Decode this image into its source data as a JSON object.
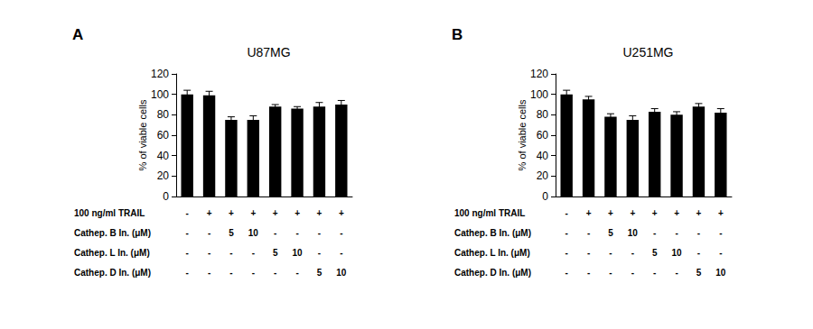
{
  "chart_data": [
    {
      "type": "bar",
      "annotation": "A",
      "title": "U87MG",
      "ylabel": "% of viable cells",
      "categories": [
        null,
        null,
        null,
        null,
        null,
        null,
        null,
        null
      ],
      "values": [
        100,
        99,
        75,
        75,
        88,
        86,
        88,
        90
      ],
      "errors": [
        4,
        4,
        3,
        4,
        2,
        2,
        4,
        4
      ],
      "color": "#000000",
      "ylim": [
        0,
        120
      ],
      "yticks": [
        0,
        20,
        40,
        60,
        80,
        100,
        120
      ],
      "grid": false,
      "conditions": [
        {
          "label": "100 ng/ml TRAIL",
          "values": [
            "-",
            "+",
            "+",
            "+",
            "+",
            "+",
            "+",
            "+"
          ]
        },
        {
          "label": "Cathep. B In. (μM)",
          "values": [
            "-",
            "-",
            "5",
            "10",
            "-",
            "-",
            "-",
            "-"
          ]
        },
        {
          "label": "Cathep. L In. (μM)",
          "values": [
            "-",
            "-",
            "-",
            "-",
            "5",
            "10",
            "-",
            "-"
          ]
        },
        {
          "label": "Cathep. D In. (μM)",
          "values": [
            "-",
            "-",
            "-",
            "-",
            "-",
            "-",
            "5",
            "10"
          ]
        }
      ]
    },
    {
      "type": "bar",
      "annotation": "B",
      "title": "U251MG",
      "ylabel": "% of viable cells",
      "categories": [
        null,
        null,
        null,
        null,
        null,
        null,
        null,
        null
      ],
      "values": [
        100,
        95,
        78,
        75,
        83,
        80,
        88,
        82
      ],
      "errors": [
        4,
        3,
        3,
        4,
        3,
        3,
        3,
        4
      ],
      "color": "#000000",
      "ylim": [
        0,
        120
      ],
      "yticks": [
        0,
        20,
        40,
        60,
        80,
        100,
        120
      ],
      "grid": false,
      "conditions": [
        {
          "label": "100 ng/ml TRAIL",
          "values": [
            "-",
            "+",
            "+",
            "+",
            "+",
            "+",
            "+",
            "+"
          ]
        },
        {
          "label": "Cathep. B In. (μM)",
          "values": [
            "-",
            "-",
            "5",
            "10",
            "-",
            "-",
            "-",
            "-"
          ]
        },
        {
          "label": "Cathep. L In. (μM)",
          "values": [
            "-",
            "-",
            "-",
            "-",
            "5",
            "10",
            "-",
            "-"
          ]
        },
        {
          "label": "Cathep. D In. (μM)",
          "values": [
            "-",
            "-",
            "-",
            "-",
            "-",
            "-",
            "5",
            "10"
          ]
        }
      ]
    }
  ]
}
